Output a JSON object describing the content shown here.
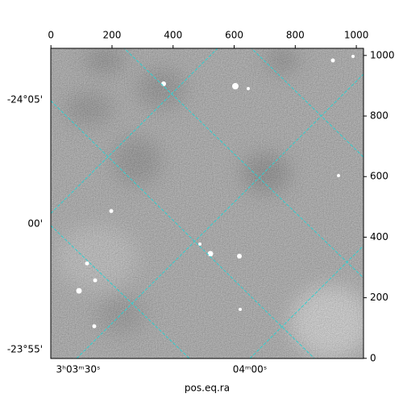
{
  "chart_data": {
    "type": "image",
    "xlabel": "pos.eq.ra",
    "xlim": [
      -0.5,
      1023.5
    ],
    "xticks": [
      0,
      200,
      400,
      600,
      800,
      1000
    ],
    "ylim": [
      -0.5,
      1023.5
    ],
    "yticks": [
      0,
      200,
      400,
      600,
      800,
      1000
    ],
    "ra_tick_labels": [
      "3ʰ03ᵐ30ˢ",
      "04ᵐ00ˢ"
    ],
    "dec_tick_labels": [
      "-24°05'",
      "00'",
      "-23°55'"
    ],
    "grid": true
  }
}
